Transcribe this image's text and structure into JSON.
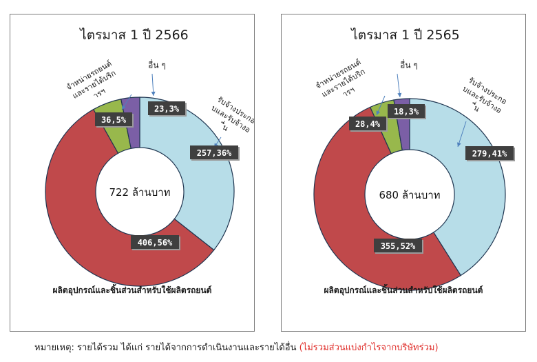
{
  "colors": {
    "other": "#7b5fa6",
    "dealer": "#98b84c",
    "manufacturing": "#c0494b",
    "contract": "#b7dde8",
    "label_bg": "#3f3f3f",
    "label_text": "#ffffff"
  },
  "chart_data": [
    {
      "type": "pie",
      "title": "ไตรมาส 1 ปี 2566",
      "center_label": "722 ล้านบาท",
      "bottom_label": "ผลิตอุปกรณ์และชิ้นส่วนสำหรับใช้ผลิตรถยนต์",
      "categories": [
        "รับจ้างประกอบและรับจ้างอื่น",
        "ผลิตอุปกรณ์และชิ้นส่วนสำหรับใช้ผลิตรถยนต์",
        "จำหน่ายรถยนต์และรายได้บริการฯ",
        "อื่น ๆ"
      ],
      "values": [
        257,
        406,
        36,
        23
      ],
      "percents": [
        36,
        56,
        5,
        3
      ],
      "data_labels": [
        "257,36%",
        "406,56%",
        "36,5%",
        "23,3%"
      ],
      "callouts": {
        "contract": "รับจ้างประกอบและรับจ้างอื่น",
        "dealer": "จำหน่ายรถยนต์และรายได้บริการฯ",
        "other": "อื่น ๆ"
      }
    },
    {
      "type": "pie",
      "title": "ไตรมาส 1 ปี 2565",
      "center_label": "680 ล้านบาท",
      "bottom_label": "ผลิตอุปกรณ์และชิ้นส่วนสำหรับใช้ผลิตรถยนต์",
      "categories": [
        "รับจ้างประกอบและรับจ้างอื่น",
        "ผลิตอุปกรณ์และชิ้นส่วนสำหรับใช้ผลิตรถยนต์",
        "จำหน่ายรถยนต์และรายได้บริการฯ",
        "อื่น ๆ"
      ],
      "values": [
        279,
        355,
        28,
        18
      ],
      "percents": [
        41,
        52,
        4,
        3
      ],
      "data_labels": [
        "279,41%",
        "355,52%",
        "28,4%",
        "18,3%"
      ],
      "callouts": {
        "contract": "รับจ้างประกอบและรับจ้างอื่น",
        "dealer": "จำหน่ายรถยนต์และรายได้บริการฯ",
        "other": "อื่น ๆ"
      }
    }
  ],
  "footnote": {
    "main": "หมายเหตุ: รายได้รวม ได้แก่ รายได้จากการดำเนินงานและรายได้อื่น ",
    "highlight": "(ไม่รวมส่วนแบ่งกำไรจากบริษัทร่วม)"
  }
}
